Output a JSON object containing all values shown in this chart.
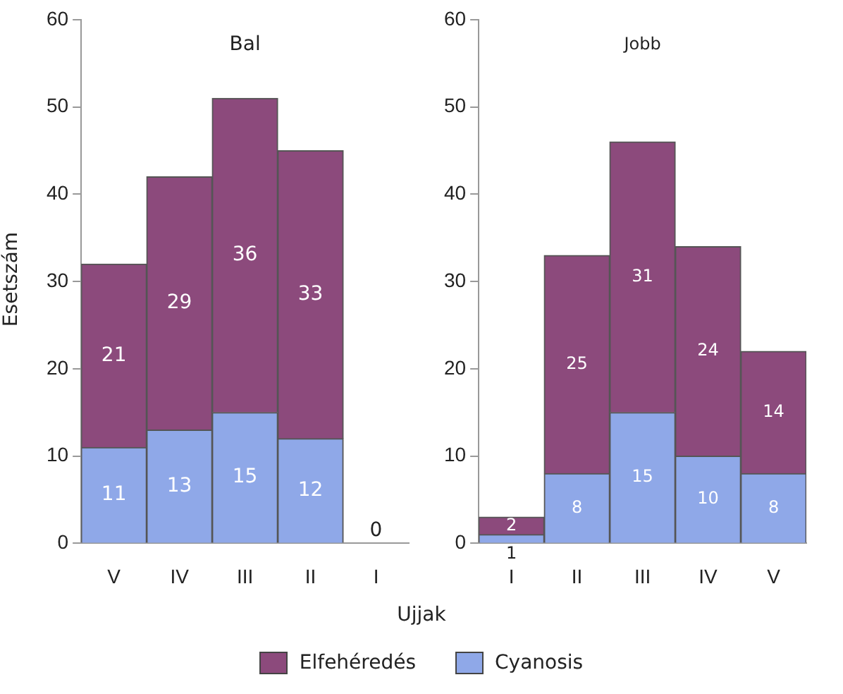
{
  "chart_data": [
    {
      "type": "bar",
      "title": "Bal",
      "ylabel": "Esetszám",
      "xlabel": "Ujjak",
      "categories": [
        "V",
        "IV",
        "III",
        "II",
        "I"
      ],
      "stacked": true,
      "ylim": [
        0,
        60
      ],
      "yticks": [
        0,
        10,
        20,
        30,
        40,
        50,
        60
      ],
      "grid": false,
      "legend": "bottom",
      "series": [
        {
          "name": "Cyanosis",
          "color": "#8fa8e8",
          "values": [
            11,
            13,
            15,
            12,
            0
          ],
          "value_labels": [
            "11",
            "13",
            "15",
            "12",
            null
          ]
        },
        {
          "name": "Elfehéredés",
          "color": "#8c4a7c",
          "values": [
            21,
            29,
            36,
            33,
            0
          ],
          "value_labels": [
            "21",
            "29",
            "36",
            "33",
            "0"
          ]
        }
      ]
    },
    {
      "type": "bar",
      "title": "Jobb",
      "categories": [
        "I",
        "II",
        "III",
        "IV",
        "V"
      ],
      "stacked": true,
      "ylim": [
        0,
        60
      ],
      "yticks": [
        0,
        10,
        20,
        30,
        40,
        50,
        60
      ],
      "grid": false,
      "series": [
        {
          "color": "#8fa8e8",
          "values": [
            1,
            8,
            15,
            10,
            8
          ],
          "value_labels": [
            "1",
            "8",
            "15",
            "10",
            "8"
          ]
        },
        {
          "color": "#8c4a7c",
          "values": [
            2,
            25,
            31,
            24,
            14
          ],
          "value_labels": [
            "2",
            "25",
            "31",
            "24",
            "14"
          ]
        }
      ]
    }
  ]
}
